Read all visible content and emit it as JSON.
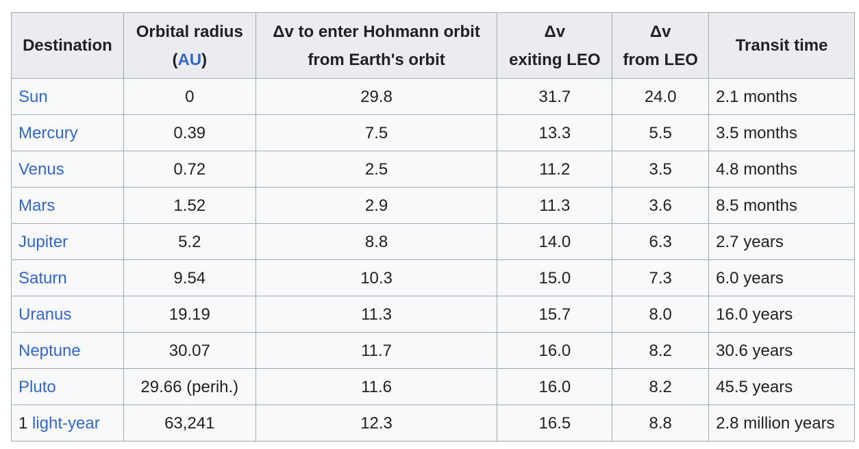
{
  "table": {
    "headers": {
      "destination": "Destination",
      "orbital_radius_line1": "Orbital radius",
      "orbital_radius_open": "(",
      "orbital_radius_unit": "AU",
      "orbital_radius_close": ")",
      "dv_hohmann_line1": "Δv to enter Hohmann orbit",
      "dv_hohmann_line2": "from Earth's orbit",
      "dv_exiting_line1": "Δv",
      "dv_exiting_line2": "exiting LEO",
      "dv_from_line1": "Δv",
      "dv_from_line2": "from LEO",
      "transit": "Transit time"
    },
    "rows": [
      {
        "prefix": "",
        "destination": "Sun",
        "radius": "0",
        "dv_hohmann": "29.8",
        "dv_exit": "31.7",
        "dv_from": "24.0",
        "transit": "2.1 months"
      },
      {
        "prefix": "",
        "destination": "Mercury",
        "radius": "0.39",
        "dv_hohmann": "7.5",
        "dv_exit": "13.3",
        "dv_from": "5.5",
        "transit": "3.5 months"
      },
      {
        "prefix": "",
        "destination": "Venus",
        "radius": "0.72",
        "dv_hohmann": "2.5",
        "dv_exit": "11.2",
        "dv_from": "3.5",
        "transit": "4.8 months"
      },
      {
        "prefix": "",
        "destination": "Mars",
        "radius": "1.52",
        "dv_hohmann": "2.9",
        "dv_exit": "11.3",
        "dv_from": "3.6",
        "transit": "8.5 months"
      },
      {
        "prefix": "",
        "destination": "Jupiter",
        "radius": "5.2",
        "dv_hohmann": "8.8",
        "dv_exit": "14.0",
        "dv_from": "6.3",
        "transit": "2.7 years"
      },
      {
        "prefix": "",
        "destination": "Saturn",
        "radius": "9.54",
        "dv_hohmann": "10.3",
        "dv_exit": "15.0",
        "dv_from": "7.3",
        "transit": "6.0 years"
      },
      {
        "prefix": "",
        "destination": "Uranus",
        "radius": "19.19",
        "dv_hohmann": "11.3",
        "dv_exit": "15.7",
        "dv_from": "8.0",
        "transit": "16.0 years"
      },
      {
        "prefix": "",
        "destination": "Neptune",
        "radius": "30.07",
        "dv_hohmann": "11.7",
        "dv_exit": "16.0",
        "dv_from": "8.2",
        "transit": "30.6 years"
      },
      {
        "prefix": "",
        "destination": "Pluto",
        "radius": "29.66 (perih.)",
        "dv_hohmann": "11.6",
        "dv_exit": "16.0",
        "dv_from": "8.2",
        "transit": "45.5 years"
      },
      {
        "prefix": "1 ",
        "destination": "light-year",
        "radius": "63,241",
        "dv_hohmann": "12.3",
        "dv_exit": "16.5",
        "dv_from": "8.8",
        "transit": "2.8 million years"
      }
    ]
  },
  "colors": {
    "link": "#3366cc",
    "header_bg": "#eaecf0",
    "cell_bg": "#f8f9fa",
    "border": "#a2a9b1",
    "text": "#202122"
  }
}
